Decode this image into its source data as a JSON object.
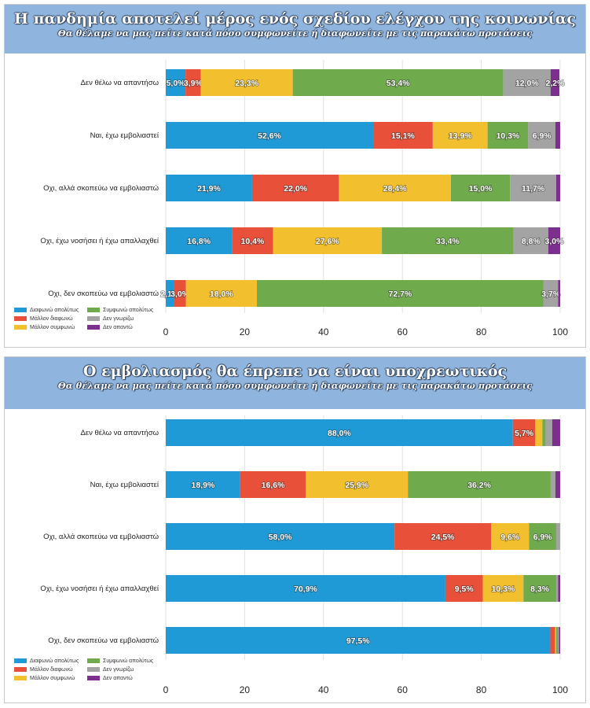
{
  "chart_data": [
    {
      "type": "bar",
      "stacked": true,
      "orientation": "horizontal",
      "title": "Η πανδημία αποτελεί μέρος ενός σχεδίου ελέγχου της κοινωνίας",
      "subtitle": "Θα θέλαμε να μας πείτε κατά πόσο συμφωνείτε ή διαφωνείτε με τις παρακάτω προτάσεις",
      "categories": [
        "Δεν θέλω να απαντήσω",
        "Ναι, έχω εμβολιαστεί",
        "Οχι, αλλά σκοπεύω να εμβολιαστώ",
        "Οχι, έχω νοσήσει ή έχω απαλλαχθεί",
        "Οχι, δεν σκοπεύω να εμβολιαστώ"
      ],
      "xlim": [
        0,
        100
      ],
      "ticks": [
        0,
        20,
        40,
        60,
        80,
        100
      ],
      "grid": true,
      "legend_position": "bottom-left",
      "series": [
        {
          "name": "Διαφωνώ απολύτως",
          "color": "#1f9ad6",
          "values": [
            5.0,
            52.6,
            21.9,
            16.8,
            2.1
          ],
          "labels": [
            "5,0%",
            "52,6%",
            "21,9%",
            "16,8%",
            "2,1%"
          ]
        },
        {
          "name": "Μάλλον διαφωνώ",
          "color": "#e8503a",
          "values": [
            3.9,
            15.1,
            22.0,
            10.4,
            3.0
          ],
          "labels": [
            "3,9%",
            "15,1%",
            "22,0%",
            "10,4%",
            "3,0%"
          ]
        },
        {
          "name": "Μάλλον συμφωνώ",
          "color": "#f2c02e",
          "values": [
            23.3,
            13.9,
            28.4,
            27.6,
            18.0
          ],
          "labels": [
            "23,3%",
            "13,9%",
            "28,4%",
            "27,6%",
            "18,0%"
          ]
        },
        {
          "name": "Συμφωνώ απολύτως",
          "color": "#6faa4c",
          "values": [
            53.4,
            10.3,
            15.0,
            33.4,
            72.7
          ],
          "labels": [
            "53,4%",
            "10,3%",
            "15,0%",
            "33,4%",
            "72,7%"
          ]
        },
        {
          "name": "Δεν γνωρίζω",
          "color": "#a3a3a3",
          "values": [
            12.0,
            6.9,
            11.7,
            8.8,
            3.7
          ],
          "labels": [
            "12,0%",
            "6,9%",
            "11,7%",
            "8,8%",
            "3,7%"
          ]
        },
        {
          "name": "Δεν απαντώ",
          "color": "#7d2f8e",
          "values": [
            2.2,
            1.2,
            1.0,
            3.0,
            0.5
          ],
          "labels": [
            "2,2%",
            "",
            "",
            "3,0%",
            ""
          ]
        }
      ]
    },
    {
      "type": "bar",
      "stacked": true,
      "orientation": "horizontal",
      "title": "Ο εμβολιασμός θα έπρεπε να είναι υποχρεωτικός",
      "subtitle": "Θα θέλαμε να μας πείτε κατά πόσο συμφωνείτε ή διαφωνείτε με τις παρακάτω προτάσεις",
      "categories": [
        "Δεν θέλω να απαντήσω",
        "Ναι, έχω εμβολιαστεί",
        "Οχι, αλλά σκοπεύω να εμβολιαστώ",
        "Οχι, έχω νοσήσει ή έχω απαλλαχθεί",
        "Οχι, δεν σκοπεύω να εμβολιαστώ"
      ],
      "xlim": [
        0,
        100
      ],
      "ticks": [
        0,
        20,
        40,
        60,
        80,
        100
      ],
      "grid": true,
      "legend_position": "bottom-left",
      "series": [
        {
          "name": "Διαφωνώ απολύτως",
          "color": "#1f9ad6",
          "values": [
            88.0,
            18.9,
            58.0,
            70.9,
            97.5
          ],
          "labels": [
            "88,0%",
            "18,9%",
            "58,0%",
            "70,9%",
            "97,5%"
          ]
        },
        {
          "name": "Μάλλον διαφωνώ",
          "color": "#e8503a",
          "values": [
            5.7,
            16.6,
            24.5,
            9.5,
            1.2
          ],
          "labels": [
            "5,7%",
            "16,6%",
            "24,5%",
            "9,5%",
            ""
          ]
        },
        {
          "name": "Μάλλον συμφωνώ",
          "color": "#f2c02e",
          "values": [
            1.8,
            25.9,
            9.6,
            10.3,
            0.3
          ],
          "labels": [
            "",
            "25,9%",
            "9,6%",
            "10,3%",
            ""
          ]
        },
        {
          "name": "Συμφωνώ απολύτως",
          "color": "#6faa4c",
          "values": [
            0.8,
            36.2,
            6.9,
            8.3,
            0.4
          ],
          "labels": [
            "",
            "36,2%",
            "6,9%",
            "8,3%",
            ""
          ]
        },
        {
          "name": "Δεν γνωρίζω",
          "color": "#a3a3a3",
          "values": [
            1.7,
            1.2,
            1.0,
            0.5,
            0.3
          ],
          "labels": [
            "",
            "",
            "",
            "",
            ""
          ]
        },
        {
          "name": "Δεν απαντώ",
          "color": "#7d2f8e",
          "values": [
            2.0,
            1.2,
            0.0,
            0.5,
            0.3
          ],
          "labels": [
            "",
            "",
            "",
            "",
            ""
          ]
        }
      ]
    }
  ]
}
